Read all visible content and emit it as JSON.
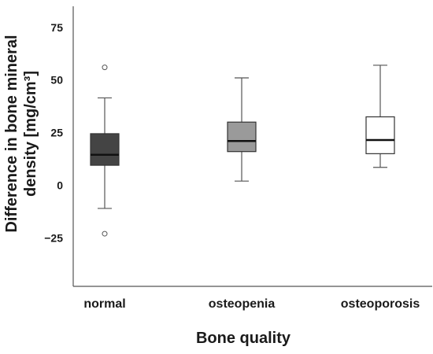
{
  "chart_data": {
    "type": "box",
    "xlabel": "Bone quality",
    "ylabel_line1": "Difference in bone mineral",
    "ylabel_line2": "density [mg/cm³]",
    "ylim": [
      -48,
      85
    ],
    "yticks": [
      75,
      50,
      25,
      0,
      -25
    ],
    "ytick_labels": [
      "75",
      "50",
      "25",
      "0",
      "−25"
    ],
    "grid": false,
    "categories": [
      "normal",
      "osteopenia",
      "osteoporosis"
    ],
    "boxes": [
      {
        "category": "normal",
        "whisker_low": -11,
        "q1": 9.5,
        "median": 14.5,
        "q3": 24.5,
        "whisker_high": 41.5,
        "outliers": [
          56,
          -23
        ],
        "fill": "#444444"
      },
      {
        "category": "osteopenia",
        "whisker_low": 2,
        "q1": 16,
        "median": 21,
        "q3": 30,
        "whisker_high": 51,
        "outliers": [],
        "fill": "#9a9a9a"
      },
      {
        "category": "osteoporosis",
        "whisker_low": 8.5,
        "q1": 15,
        "median": 21.5,
        "q3": 32.5,
        "whisker_high": 57,
        "outliers": [],
        "fill": "#ffffff"
      }
    ]
  }
}
